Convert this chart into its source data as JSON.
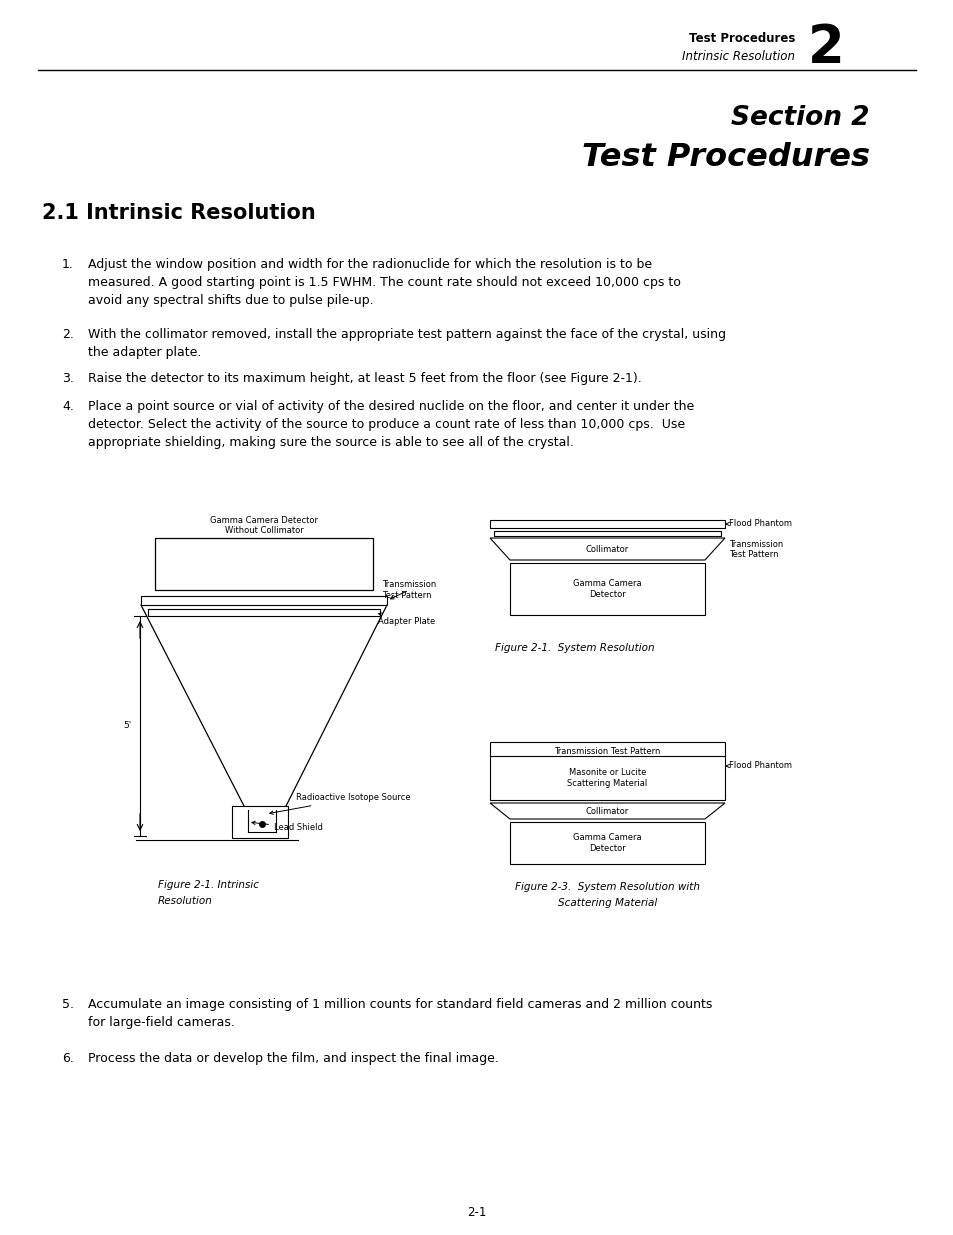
{
  "bg_color": "#ffffff",
  "header_bold": "Test Procedures",
  "header_italic": "Intrinsic Resolution",
  "header_number": "2",
  "section_title_line1": "Section 2",
  "section_title_line2": "Test Procedures",
  "section_heading": "2.1 Intrinsic Resolution",
  "item1": "Adjust the window position and width for the radionuclide for which the resolution is to be\nmeasured. A good starting point is 1.5 FWHM. The count rate should not exceed 10,000 cps to\navoid any spectral shifts due to pulse pile-up.",
  "item2": "With the collimator removed, install the appropriate test pattern against the face of the crystal, using\nthe adapter plate.",
  "item3": "Raise the detector to its maximum height, at least 5 feet from the floor (see Figure 2-1).",
  "item4": "Place a point source or vial of activity of the desired nuclide on the floor, and center it under the\ndetector. Select the activity of the source to produce a count rate of less than 10,000 cps.  Use\nappropriate shielding, making sure the source is able to see all of the crystal.",
  "item5": "Accumulate an image consisting of 1 million counts for standard field cameras and 2 million counts\nfor large-field cameras.",
  "item6": "Process the data or develop the film, and inspect the final image.",
  "fig1_caption_line1": "Figure 2-1. Intrinsic",
  "fig1_caption_line2": "Resolution",
  "fig2_caption": "Figure 2-1.  System Resolution",
  "fig3_caption_line1": "Figure 2-3.  System Resolution with",
  "fig3_caption_line2": "Scattering Material",
  "page_number": "2-1",
  "label_detector_nocoll": "Gamma Camera Detector\nWithout Collimator",
  "label_transmission": "Transmission\nTest Pattern",
  "label_adapter": "Adapter Plate",
  "label_isotope": "Radioactive Isotope Source",
  "label_lead": "Lead Shield",
  "label_feet": "5'",
  "label_flood": "Flood Phantom",
  "label_collimator": "Collimator",
  "label_trans2": "Transmission\nTest Pattern",
  "label_gamma_det": "Gamma Camera\nDetector",
  "label_ttp": "Transmission Test Pattern",
  "label_flood3": "Flood Phantom",
  "label_masonite": "Masonite or Lucite\nScattering Material",
  "label_collimator3": "Collimator",
  "label_gamma_det3": "Gamma Camera\nDetector"
}
